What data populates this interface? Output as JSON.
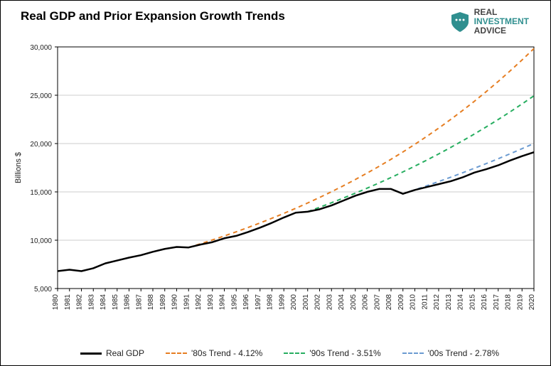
{
  "title": "Real GDP and Prior Expansion Growth Trends",
  "brand": {
    "line1a": "REAL",
    "line1b": "INVESTMENT",
    "line2": "ADVICE",
    "shield_color": "#2f8f8f",
    "accent_color": "#2f8f8f"
  },
  "chart": {
    "type": "line",
    "ylabel": "Billions $",
    "ylim": [
      5000,
      30000
    ],
    "ytick_step": 5000,
    "yticks": [
      "5,000",
      "10,000",
      "15,000",
      "20,000",
      "25,000",
      "30,000"
    ],
    "xlim": [
      1980,
      2020
    ],
    "xticks": [
      "1980",
      "1981",
      "1982",
      "1983",
      "1984",
      "1985",
      "1986",
      "1987",
      "1988",
      "1989",
      "1990",
      "1991",
      "1992",
      "1993",
      "1994",
      "1995",
      "1996",
      "1997",
      "1998",
      "1999",
      "2000",
      "2001",
      "2002",
      "2003",
      "2004",
      "2005",
      "2006",
      "2007",
      "2008",
      "2009",
      "2010",
      "2011",
      "2012",
      "2013",
      "2014",
      "2015",
      "2016",
      "2017",
      "2018",
      "2019",
      "2020"
    ],
    "background_color": "#ffffff",
    "plot_border_color": "#000000",
    "grid_color": "#cccccc",
    "grid": true,
    "title_fontsize": 17,
    "axis_fontsize": 11,
    "tick_fontsize": 10,
    "line_width_main": 2.5,
    "line_width_trend": 2,
    "dash_pattern": "6,5",
    "series": {
      "real_gdp": {
        "label": "Real GDP",
        "color": "#000000",
        "style": "solid",
        "data": [
          [
            1980,
            6800
          ],
          [
            1981,
            6950
          ],
          [
            1982,
            6800
          ],
          [
            1983,
            7100
          ],
          [
            1984,
            7600
          ],
          [
            1985,
            7900
          ],
          [
            1986,
            8200
          ],
          [
            1987,
            8450
          ],
          [
            1988,
            8800
          ],
          [
            1989,
            9100
          ],
          [
            1990,
            9300
          ],
          [
            1991,
            9250
          ],
          [
            1992,
            9550
          ],
          [
            1993,
            9800
          ],
          [
            1994,
            10200
          ],
          [
            1995,
            10450
          ],
          [
            1996,
            10850
          ],
          [
            1997,
            11300
          ],
          [
            1998,
            11800
          ],
          [
            1999,
            12350
          ],
          [
            2000,
            12850
          ],
          [
            2001,
            12950
          ],
          [
            2002,
            13200
          ],
          [
            2003,
            13600
          ],
          [
            2004,
            14100
          ],
          [
            2005,
            14600
          ],
          [
            2006,
            15000
          ],
          [
            2007,
            15300
          ],
          [
            2008,
            15300
          ],
          [
            2009,
            14800
          ],
          [
            2010,
            15200
          ],
          [
            2011,
            15500
          ],
          [
            2012,
            15800
          ],
          [
            2013,
            16100
          ],
          [
            2014,
            16500
          ],
          [
            2015,
            17000
          ],
          [
            2016,
            17350
          ],
          [
            2017,
            17750
          ],
          [
            2018,
            18250
          ],
          [
            2019,
            18700
          ],
          [
            2020,
            19100
          ]
        ]
      },
      "trend_80s": {
        "label": "'80s Trend - 4.12%",
        "color": "#e67e22",
        "style": "dashed",
        "start_year": 1991,
        "rate": 0.0412,
        "start_value": 9250
      },
      "trend_90s": {
        "label": "'90s Trend - 3.51%",
        "color": "#27ae60",
        "style": "dashed",
        "start_year": 2001,
        "rate": 0.0351,
        "start_value": 12950
      },
      "trend_00s": {
        "label": "'00s Trend - 2.78%",
        "color": "#6b9bd1",
        "style": "dashed",
        "start_year": 2009,
        "rate": 0.0278,
        "start_value": 14800
      }
    }
  },
  "legend": {
    "items": [
      {
        "label": "Real GDP",
        "style": "solid",
        "color": "#000000"
      },
      {
        "label": "'80s Trend - 4.12%",
        "style": "dashed",
        "color": "#e67e22"
      },
      {
        "label": "'90s Trend - 3.51%",
        "style": "dashed",
        "color": "#27ae60"
      },
      {
        "label": "'00s Trend - 2.78%",
        "style": "dashed",
        "color": "#6b9bd1"
      }
    ]
  }
}
